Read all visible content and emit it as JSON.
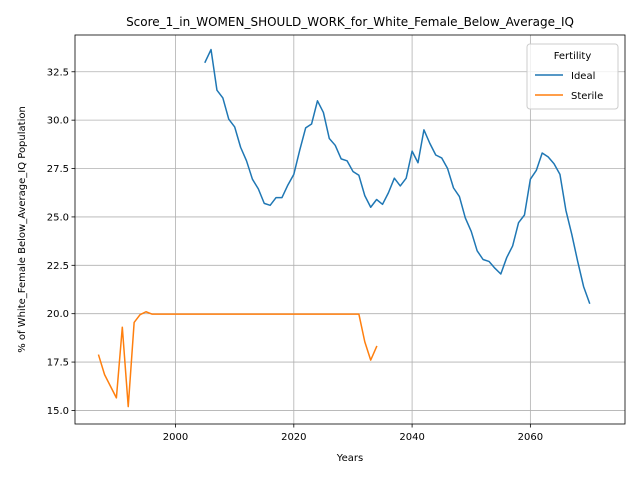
{
  "chart_data": {
    "type": "line",
    "title": "Score_1_in_WOMEN_SHOULD_WORK_for_White_Female_Below_Average_IQ",
    "xlabel": "Years",
    "ylabel": "% of White_Female Below_Average_IQ Population",
    "xlim": [
      1983,
      2076
    ],
    "ylim": [
      14.3,
      34.4
    ],
    "xticks": [
      2000,
      2020,
      2040,
      2060
    ],
    "yticks": [
      15.0,
      17.5,
      20.0,
      22.5,
      25.0,
      27.5,
      30.0,
      32.5
    ],
    "xtick_labels": [
      "2000",
      "2020",
      "2040",
      "2060"
    ],
    "ytick_labels": [
      "15.0",
      "17.5",
      "20.0",
      "22.5",
      "25.0",
      "27.5",
      "30.0",
      "32.5"
    ],
    "grid": true,
    "legend": {
      "title": "Fertility",
      "location": "top-right"
    },
    "series": [
      {
        "name": "Ideal",
        "color": "#1f77b4",
        "x": [
          2005,
          2006,
          2007,
          2008,
          2009,
          2010,
          2011,
          2012,
          2013,
          2014,
          2015,
          2016,
          2017,
          2018,
          2019,
          2020,
          2021,
          2022,
          2023,
          2024,
          2025,
          2026,
          2027,
          2028,
          2029,
          2030,
          2031,
          2032,
          2033,
          2034,
          2035,
          2036,
          2037,
          2038,
          2039,
          2040,
          2041,
          2042,
          2043,
          2044,
          2045,
          2046,
          2047,
          2048,
          2049,
          2050,
          2051,
          2052,
          2053,
          2054,
          2055,
          2056,
          2057,
          2058,
          2059,
          2060,
          2061,
          2062,
          2063,
          2064,
          2065,
          2066,
          2067,
          2068,
          2069,
          2070
        ],
        "y": [
          33.0,
          33.65,
          31.55,
          31.15,
          30.05,
          29.65,
          28.6,
          27.9,
          26.95,
          26.45,
          25.7,
          25.6,
          26.0,
          26.0,
          26.65,
          27.2,
          28.45,
          29.6,
          29.8,
          31.0,
          30.4,
          29.05,
          28.7,
          28.0,
          27.9,
          27.35,
          27.15,
          26.1,
          25.5,
          25.9,
          25.65,
          26.25,
          27.0,
          26.6,
          27.0,
          28.4,
          27.8,
          29.5,
          28.8,
          28.2,
          28.05,
          27.5,
          26.5,
          26.05,
          24.95,
          24.25,
          23.25,
          22.8,
          22.7,
          22.35,
          22.05,
          22.9,
          23.5,
          24.7,
          25.1,
          26.95,
          27.4,
          28.3,
          28.1,
          27.75,
          27.2,
          25.35,
          24.1,
          22.7,
          21.4,
          20.55
        ]
      },
      {
        "name": "Sterile",
        "color": "#ff7f0e",
        "x": [
          1987,
          1988,
          1989,
          1990,
          1991,
          1992,
          1993,
          1994,
          1995,
          1996,
          1997,
          1998,
          1999,
          2000,
          2005,
          2010,
          2015,
          2020,
          2025,
          2030,
          2031,
          2032,
          2033,
          2034
        ],
        "y": [
          17.85,
          16.85,
          16.25,
          15.65,
          19.3,
          15.2,
          19.55,
          19.95,
          20.1,
          19.98,
          19.98,
          19.98,
          19.98,
          19.98,
          19.98,
          19.98,
          19.98,
          19.98,
          19.98,
          19.98,
          19.98,
          18.55,
          17.6,
          18.3
        ]
      }
    ]
  }
}
